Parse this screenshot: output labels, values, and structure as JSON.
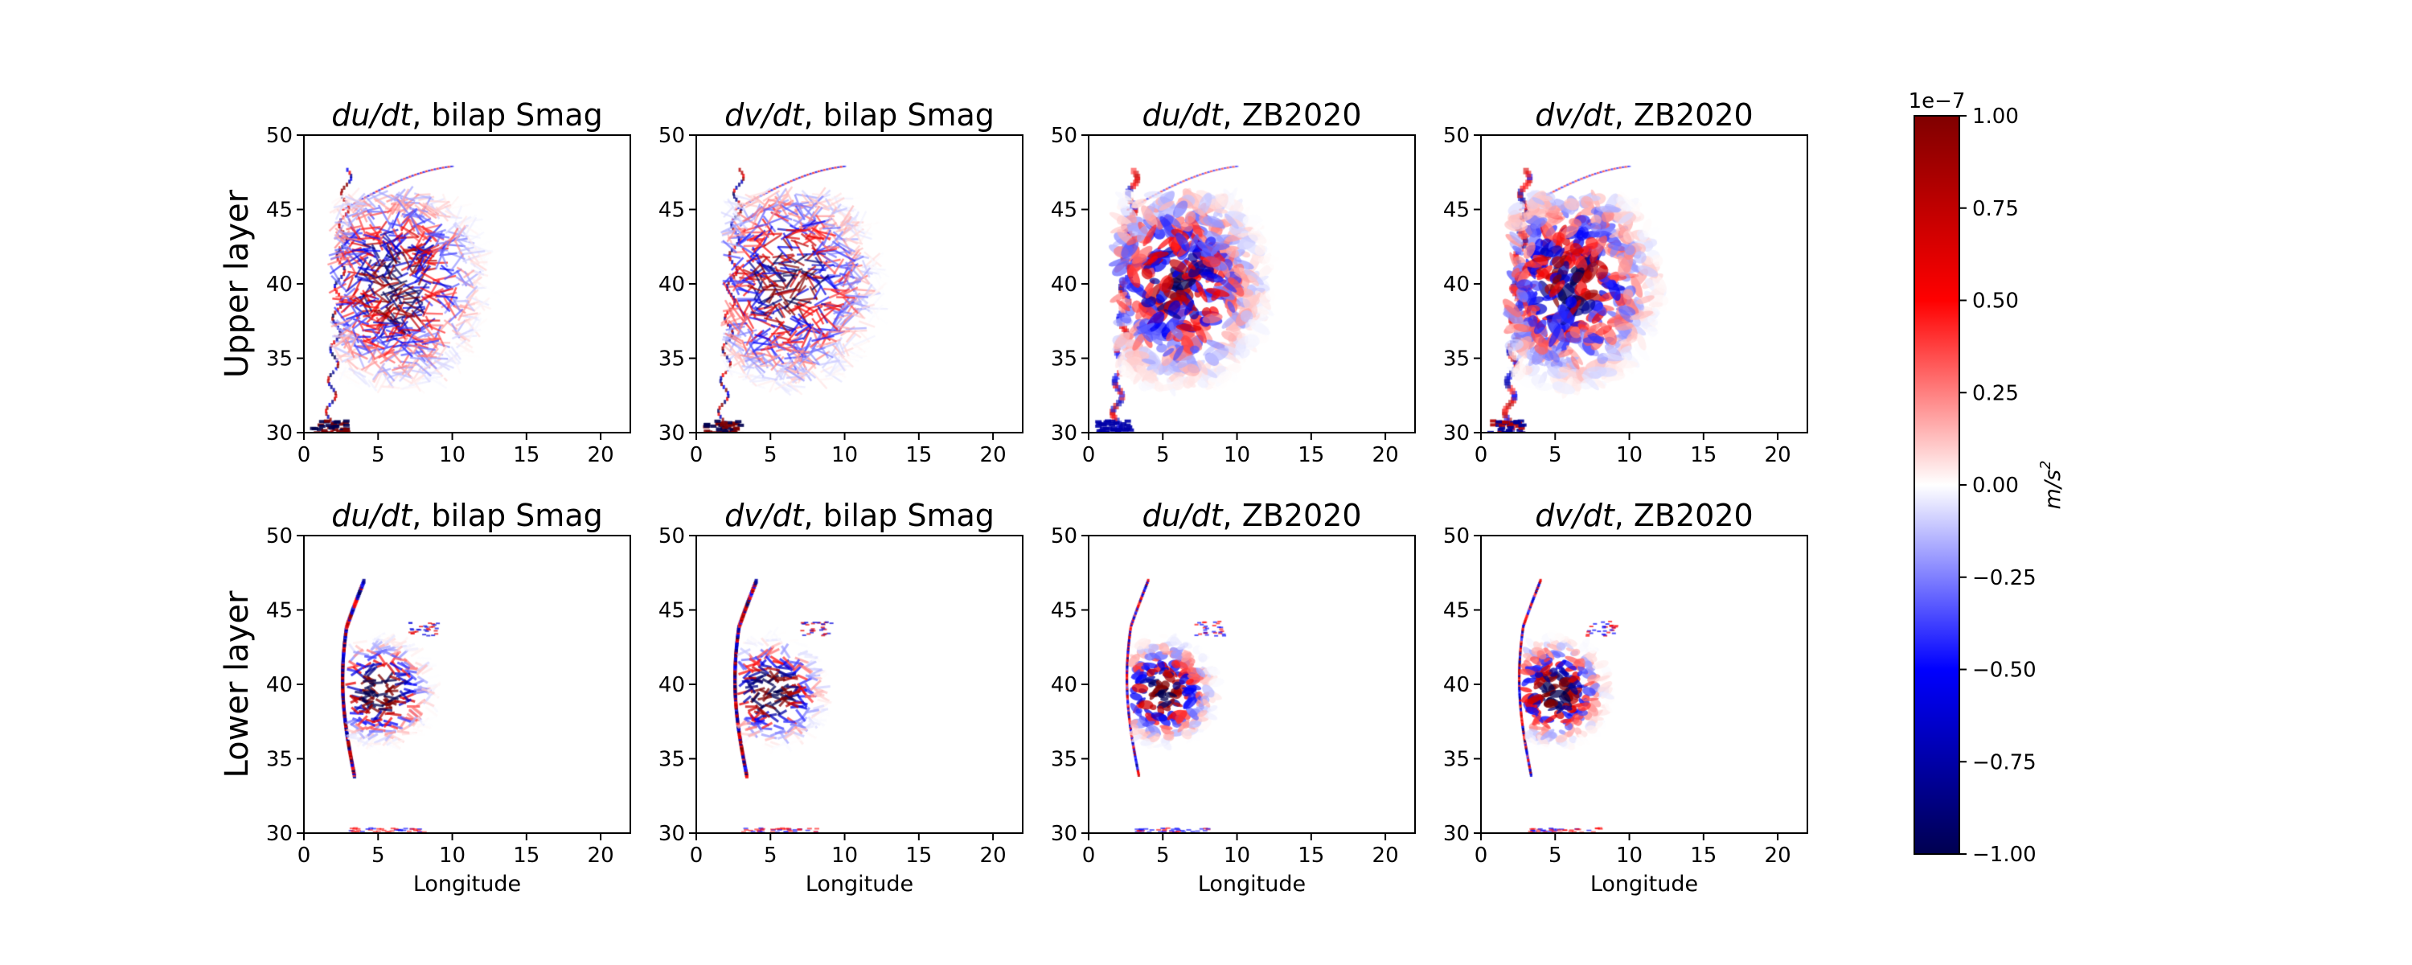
{
  "chart_data": {
    "type": "heatmap",
    "panels": [
      {
        "id": "p00",
        "row": 0,
        "col": 0,
        "title_var": "du/dt",
        "title_rest": ", bilap Smag",
        "style": "smag",
        "var": "u",
        "amp": 1.0
      },
      {
        "id": "p01",
        "row": 0,
        "col": 1,
        "title_var": "dv/dt",
        "title_rest": ", bilap Smag",
        "style": "smag",
        "var": "v",
        "amp": 1.0
      },
      {
        "id": "p02",
        "row": 0,
        "col": 2,
        "title_var": "du/dt",
        "title_rest": ", ZB2020",
        "style": "zb",
        "var": "u",
        "amp": 0.75
      },
      {
        "id": "p03",
        "row": 0,
        "col": 3,
        "title_var": "dv/dt",
        "title_rest": ", ZB2020",
        "style": "zb",
        "var": "v",
        "amp": 0.8
      },
      {
        "id": "p10",
        "row": 1,
        "col": 0,
        "title_var": "du/dt",
        "title_rest": ", bilap Smag",
        "style": "smag_low",
        "var": "u",
        "amp": 1.0
      },
      {
        "id": "p11",
        "row": 1,
        "col": 1,
        "title_var": "dv/dt",
        "title_rest": ", bilap Smag",
        "style": "smag_low",
        "var": "v",
        "amp": 1.0
      },
      {
        "id": "p12",
        "row": 1,
        "col": 2,
        "title_var": "du/dt",
        "title_rest": ", ZB2020",
        "style": "zb_low",
        "var": "u",
        "amp": 0.8
      },
      {
        "id": "p13",
        "row": 1,
        "col": 3,
        "title_var": "dv/dt",
        "title_rest": ", ZB2020",
        "style": "zb_low",
        "var": "v",
        "amp": 0.85
      }
    ],
    "row_labels": [
      "Upper layer",
      "Lower layer"
    ],
    "xlabel": "Longitude",
    "xlim": [
      0,
      22
    ],
    "ylim": [
      30,
      50
    ],
    "x_ticks": [
      0,
      5,
      10,
      15,
      20
    ],
    "y_ticks": [
      30,
      35,
      40,
      45,
      50
    ],
    "colorbar": {
      "colormap": "seismic",
      "vmin": -1.0,
      "vmax": 1.0,
      "ticks": [
        "1.00",
        "0.75",
        "0.50",
        "0.25",
        "0.00",
        "−0.25",
        "−0.50",
        "−0.75",
        "−1.00"
      ],
      "tick_values": [
        1.0,
        0.75,
        0.5,
        0.25,
        0.0,
        -0.25,
        -0.5,
        -0.75,
        -1.0
      ],
      "exponent": "1e−7",
      "label_base": "m/s",
      "label_sup": "2"
    },
    "grid": false
  }
}
